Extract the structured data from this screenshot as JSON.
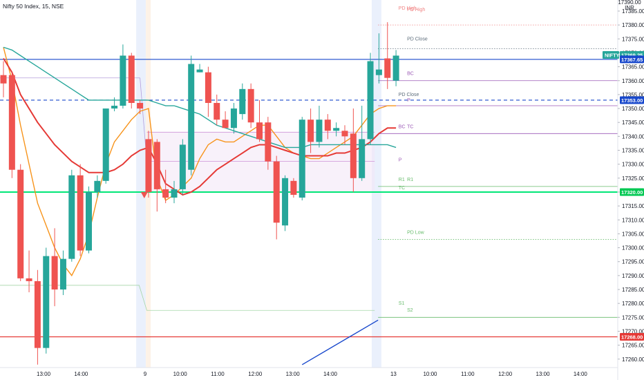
{
  "symbol": {
    "title": "Nifty 50 Index, 15, NSE"
  },
  "axis": {
    "currency": "INR",
    "top_partial": "17390.00"
  },
  "chart_data": {
    "type": "candlestick",
    "title": "Nifty 50 Index, 15, NSE",
    "ylim": [
      17258,
      17392
    ],
    "y_ticks": [
      17385,
      17380,
      17375,
      17370,
      17365,
      17360,
      17355,
      17350,
      17345,
      17340,
      17335,
      17330,
      17325,
      17320,
      17315,
      17310,
      17305,
      17300,
      17295,
      17290,
      17285,
      17280,
      17275,
      17270,
      17265,
      17260
    ],
    "x_ticks": [
      {
        "label": "13:00",
        "bar": 4.7
      },
      {
        "label": "14:00",
        "bar": 9.1
      },
      {
        "label": "9",
        "bar": 16.6
      },
      {
        "label": "10:00",
        "bar": 20.7
      },
      {
        "label": "11:00",
        "bar": 25.1
      },
      {
        "label": "12:00",
        "bar": 29.5
      },
      {
        "label": "13:00",
        "bar": 33.9
      },
      {
        "label": "14:00",
        "bar": 38.3
      },
      {
        "label": "13",
        "bar": 45.7
      },
      {
        "label": "10:00",
        "bar": 50.0
      },
      {
        "label": "11:00",
        "bar": 54.4
      },
      {
        "label": "12:00",
        "bar": 58.8
      },
      {
        "label": "13:00",
        "bar": 63.2
      },
      {
        "label": "14:00",
        "bar": 67.6
      }
    ],
    "candles": [
      {
        "o": 17362.0,
        "h": 17367.0,
        "l": 17354.0,
        "c": 17359.0
      },
      {
        "o": 17362.0,
        "h": 17363.0,
        "l": 17325.0,
        "c": 17328.0
      },
      {
        "o": 17328.0,
        "h": 17330.0,
        "l": 17288.0,
        "c": 17289.0
      },
      {
        "o": 17289.0,
        "h": 17299.0,
        "l": 17284.0,
        "c": 17288.0
      },
      {
        "o": 17288.0,
        "h": 17292.0,
        "l": 17258.0,
        "c": 17264.0
      },
      {
        "o": 17264.0,
        "h": 17300.0,
        "l": 17262.0,
        "c": 17297.0
      },
      {
        "o": 17297.0,
        "h": 17307.0,
        "l": 17279.0,
        "c": 17285.0
      },
      {
        "o": 17285.0,
        "h": 17299.0,
        "l": 17283.0,
        "c": 17296.0
      },
      {
        "o": 17296.0,
        "h": 17328.0,
        "l": 17295.0,
        "c": 17326.0
      },
      {
        "o": 17326.0,
        "h": 17330.0,
        "l": 17297.0,
        "c": 17299.0
      },
      {
        "o": 17299.0,
        "h": 17322.0,
        "l": 17298.0,
        "c": 17320.0
      },
      {
        "o": 17320.0,
        "h": 17326.0,
        "l": 17318.0,
        "c": 17324.0
      },
      {
        "o": 17324.0,
        "h": 17350.0,
        "l": 17323.0,
        "c": 17350.0
      },
      {
        "o": 17350.0,
        "h": 17354.0,
        "l": 17349.0,
        "c": 17351.0
      },
      {
        "o": 17351.0,
        "h": 17373.0,
        "l": 17350.0,
        "c": 17369.0
      },
      {
        "o": 17369.0,
        "h": 17370.0,
        "l": 17350.0,
        "c": 17352.0
      },
      {
        "o": 17352.0,
        "h": 17353.0,
        "l": 17348.0,
        "c": 17350.0
      },
      {
        "o": 17339.0,
        "h": 17342.0,
        "l": 17318.0,
        "c": 17320.0
      },
      {
        "o": 17338.0,
        "h": 17339.0,
        "l": 17313.0,
        "c": 17321.0
      },
      {
        "o": 17321.0,
        "h": 17328.0,
        "l": 17316.0,
        "c": 17318.0
      },
      {
        "o": 17318.0,
        "h": 17324.0,
        "l": 17316.0,
        "c": 17321.0
      },
      {
        "o": 17321.0,
        "h": 17339.0,
        "l": 17319.0,
        "c": 17337.0
      },
      {
        "o": 17328.0,
        "h": 17369.0,
        "l": 17326.0,
        "c": 17366.0
      },
      {
        "o": 17363.0,
        "h": 17366.0,
        "l": 17363.0,
        "c": 17364.0
      },
      {
        "o": 17363.0,
        "h": 17365.0,
        "l": 17347.0,
        "c": 17352.0
      },
      {
        "o": 17352.0,
        "h": 17355.0,
        "l": 17344.0,
        "c": 17346.0
      },
      {
        "o": 17346.0,
        "h": 17349.0,
        "l": 17343.0,
        "c": 17343.0
      },
      {
        "o": 17343.0,
        "h": 17352.0,
        "l": 17341.0,
        "c": 17350.0
      },
      {
        "o": 17348.0,
        "h": 17359.0,
        "l": 17346.0,
        "c": 17357.0
      },
      {
        "o": 17357.0,
        "h": 17359.0,
        "l": 17343.0,
        "c": 17345.0
      },
      {
        "o": 17345.0,
        "h": 17353.0,
        "l": 17338.0,
        "c": 17339.0
      },
      {
        "o": 17345.0,
        "h": 17347.0,
        "l": 17328.0,
        "c": 17331.0
      },
      {
        "o": 17331.0,
        "h": 17333.0,
        "l": 17303.0,
        "c": 17309.0
      },
      {
        "o": 17308.0,
        "h": 17326.0,
        "l": 17306.0,
        "c": 17325.0
      },
      {
        "o": 17324.0,
        "h": 17325.0,
        "l": 17318.0,
        "c": 17319.0
      },
      {
        "o": 17318.0,
        "h": 17347.0,
        "l": 17317.0,
        "c": 17346.0
      },
      {
        "o": 17346.0,
        "h": 17350.0,
        "l": 17334.0,
        "c": 17338.0
      },
      {
        "o": 17338.0,
        "h": 17351.0,
        "l": 17336.0,
        "c": 17346.0
      },
      {
        "o": 17346.0,
        "h": 17348.0,
        "l": 17339.0,
        "c": 17342.0
      },
      {
        "o": 17342.0,
        "h": 17345.0,
        "l": 17340.0,
        "c": 17343.0
      },
      {
        "o": 17342.0,
        "h": 17344.0,
        "l": 17337.0,
        "c": 17340.0
      },
      {
        "o": 17341.0,
        "h": 17350.0,
        "l": 17320.0,
        "c": 17325.0
      },
      {
        "o": 17325.0,
        "h": 17351.0,
        "l": 17324.0,
        "c": 17339.0
      },
      {
        "o": 17339.0,
        "h": 17370.0,
        "l": 17337.0,
        "c": 17367.0
      },
      {
        "o": 17362.0,
        "h": 17377.0,
        "l": 17359.0,
        "c": 17364.0
      },
      {
        "o": 17368.0,
        "h": 17381.0,
        "l": 17357.0,
        "c": 17361.0
      },
      {
        "o": 17360.0,
        "h": 17371.0,
        "l": 17358.0,
        "c": 17369.0
      }
    ],
    "ma_series": [
      {
        "color": "#f7931a",
        "values": [
          17372,
          17360,
          17344,
          17330,
          17316,
          17308,
          17300,
          17294,
          17290,
          17296,
          17305,
          17318,
          17330,
          17338,
          17342,
          17346,
          17349,
          17350,
          17325,
          17317,
          17319,
          17322,
          17325,
          17332,
          17337,
          17339,
          17338,
          17338,
          17340,
          17342,
          17344,
          17344,
          17340,
          17336,
          17334,
          17333,
          17332,
          17332,
          17334,
          17336,
          17338,
          17340,
          17344,
          17348,
          17350,
          17351,
          17351
        ]
      },
      {
        "color": "#e53935",
        "values": [
          17368,
          17363,
          17355,
          17350,
          17345,
          17341,
          17337,
          17334,
          17331,
          17329,
          17327,
          17327,
          17327,
          17328,
          17330,
          17333,
          17335,
          17336,
          17330,
          17323,
          17321,
          17319,
          17320,
          17322,
          17325,
          17328,
          17330,
          17332,
          17334,
          17336,
          17337,
          17337,
          17336,
          17335,
          17334,
          17333,
          17333,
          17333,
          17333,
          17334,
          17334,
          17335,
          17336,
          17338,
          17341,
          17343,
          17343
        ]
      },
      {
        "color": "#26a69a",
        "values": [
          17372,
          17371,
          17369,
          17367,
          17365,
          17363,
          17361,
          17359,
          17357,
          17355,
          17353,
          17353,
          17353,
          17353,
          17353,
          17353,
          17353,
          17353,
          17352,
          17351,
          17351,
          17350,
          17349,
          17348,
          17346,
          17344,
          17343,
          17342,
          17341,
          17340,
          17339,
          17338,
          17337,
          17336,
          17336,
          17336,
          17337,
          17337,
          17337,
          17337,
          17337,
          17337,
          17337,
          17337,
          17337,
          17337,
          17336
        ]
      }
    ],
    "levels": [
      {
        "name": "PD High",
        "price": 17380.0,
        "color": "#f08080",
        "style": "dotted",
        "label_bar": 47.3,
        "label_price": 17385.0
      },
      {
        "name": "PD Close",
        "price": 17371.5,
        "color": "#5b6b7a",
        "style": "dotted",
        "label_bar": 47.3,
        "label_price": 17374.5
      },
      {
        "name": "BC",
        "price": 17360.0,
        "color": "#9b59b6",
        "style": "solid",
        "label_bar": 47.3,
        "label_price": 17362.0
      },
      {
        "name": "P",
        "price": 17351.0,
        "color": "#9b59b6",
        "style": "solid",
        "label_bar": 47.3,
        "label_price": 17352.5
      },
      {
        "name": "TC",
        "price": 17341.0,
        "color": "#9b59b6",
        "style": "solid",
        "label_bar": 47.3,
        "label_price": 17343.0
      },
      {
        "name": "R1",
        "price": 17322.0,
        "color": "#66bb6a",
        "style": "solid",
        "label_bar": 47.3,
        "label_price": 17324.0
      },
      {
        "name": "PD Low",
        "price": 17303.0,
        "color": "#66bb6a",
        "style": "dotted",
        "label_bar": 47.3,
        "label_price": 17305.0
      },
      {
        "name": "S2",
        "price": 17275.0,
        "color": "#66bb6a",
        "style": "solid",
        "label_bar": 47.3,
        "label_price": 17277.0
      }
    ],
    "prev_levels": [
      {
        "name": "PD High",
        "price": 17384.0,
        "color": "#f08080",
        "label_bar": 46.3,
        "label_price": 17385.5
      },
      {
        "name": "PD Close",
        "price": 17353.0,
        "color": "#5b6b7a",
        "label_bar": 46.3,
        "label_price": 17354.5
      },
      {
        "name": "BC",
        "price": 17341.5,
        "color": "#9b59b6",
        "label_bar": 46.3,
        "label_price": 17343.0
      },
      {
        "name": "P",
        "price": 17331.0,
        "color": "#9b59b6",
        "label_bar": 46.3,
        "label_price": 17331.0
      },
      {
        "name": "R1",
        "price": 17323.0,
        "color": "#66bb6a",
        "label_bar": 46.3,
        "label_price": 17324.0
      },
      {
        "name": "TC",
        "price": 17320.0,
        "color": "#66bb6a",
        "label_bar": 46.3,
        "label_price": 17321.0
      },
      {
        "name": "S1",
        "price": 17278.0,
        "color": "#66bb6a",
        "label_bar": 46.3,
        "label_price": 17279.5
      }
    ],
    "h_lines": [
      {
        "price": 17367.65,
        "color": "#1848cc",
        "style": "solid"
      },
      {
        "price": 17353.0,
        "color": "#1848cc",
        "style": "dashed"
      },
      {
        "price": 17320.0,
        "color": "#00e676",
        "style": "solid"
      },
      {
        "price": 17268.0,
        "color": "#e53935",
        "style": "solid"
      }
    ],
    "price_badges": [
      {
        "text": "17369.25",
        "price": 17369.25,
        "color": "#26a69a",
        "prefix": "NIFTY"
      },
      {
        "text": "17367.65",
        "price": 17367.65,
        "color": "#1848cc",
        "prefix": ""
      },
      {
        "text": "17353.00",
        "price": 17353.0,
        "color": "#1848cc",
        "prefix": ""
      },
      {
        "text": "17320.00",
        "price": 17320.0,
        "color": "#00c853",
        "prefix": ""
      },
      {
        "text": "17268.00",
        "price": 17268.0,
        "color": "#e53935",
        "prefix": ""
      }
    ],
    "signal": {
      "type": "sell-triangle",
      "bar": 16.5,
      "price": 17318.5,
      "color": "#ef5350"
    },
    "session_bands": [
      {
        "bar": 16.2
      },
      {
        "bar": 43.8
      }
    ],
    "trend_line": {
      "color": "#1848cc",
      "x1_bar": 35.0,
      "y1": 17258,
      "x2_bar": 43.9,
      "y2": 17274
    }
  }
}
